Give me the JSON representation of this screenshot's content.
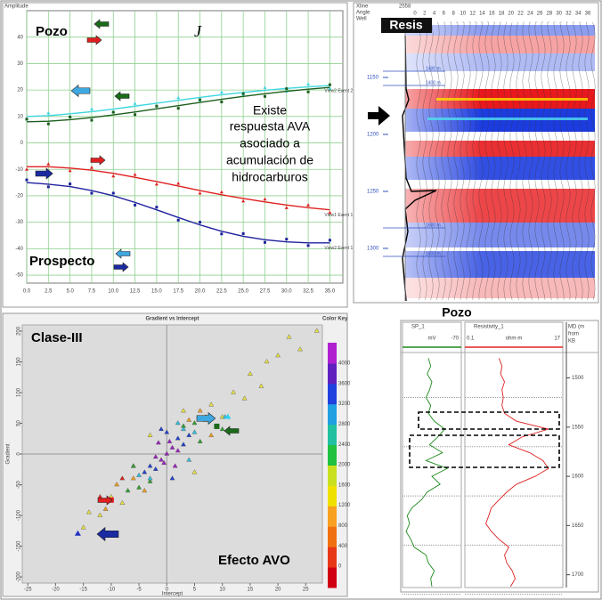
{
  "chart_data": [
    {
      "type": "line",
      "ylabel": "Amplitude",
      "x": [
        0,
        2.5,
        5,
        7.5,
        10,
        12.5,
        15,
        17.5,
        20,
        22.5,
        25,
        27.5,
        30,
        32.5,
        35
      ],
      "series": [
        {
          "name": "View2 Event 2",
          "color": "#3fd6e0",
          "values": [
            10,
            10.3,
            11,
            11.8,
            12.8,
            13.9,
            15,
            16.1,
            17.2,
            18.2,
            19.1,
            19.9,
            20.6,
            21.2,
            21.7
          ]
        },
        {
          "color": "#1d5e1d",
          "values": [
            8,
            8.2,
            8.8,
            9.6,
            10.6,
            11.7,
            12.9,
            14.1,
            15.3,
            16.5,
            17.6,
            18.6,
            19.5,
            20.3,
            21
          ]
        },
        {
          "name": "View1 Event 1",
          "color": "#e02020",
          "values": [
            -9,
            -9,
            -9.5,
            -10.3,
            -11.5,
            -13,
            -14.6,
            -16.3,
            -18,
            -19.6,
            -21,
            -22.3,
            -23.5,
            -24.5,
            -25.3
          ]
        },
        {
          "name": "View2 Event 1",
          "color": "#2020a0",
          "values": [
            -15,
            -15.6,
            -16.5,
            -18,
            -20,
            -22.5,
            -25.3,
            -28.2,
            -31,
            -33.4,
            -35.3,
            -36.6,
            -37.4,
            -37.8,
            -37.8
          ]
        }
      ],
      "xlim": [
        0,
        36.5
      ],
      "xticks": [
        {
          "value": 0,
          "label": "0.0"
        },
        2.5,
        {
          "value": 5,
          "label": "5.0"
        },
        7.5,
        {
          "value": 10,
          "label": "10.0"
        },
        12.5,
        {
          "value": 15,
          "label": "15.0"
        },
        17.5,
        {
          "value": 20,
          "label": "20.0"
        },
        22.5,
        {
          "value": 25,
          "label": "25.0"
        },
        27.5,
        {
          "value": 30,
          "label": "30.0"
        },
        32.5,
        {
          "value": 35,
          "label": "35.0"
        }
      ],
      "ylim": [
        -53,
        50
      ],
      "yticks": [
        -50,
        -40,
        -30,
        -20,
        -10,
        0,
        10,
        20,
        30,
        40
      ],
      "grid": true,
      "annotations": [
        "Pozo",
        "Prospecto",
        "J",
        "Existe",
        "respuesta AVA",
        "asociado a",
        "acumulación  de",
        "hidrocarburos"
      ]
    },
    {
      "type": "scatter",
      "title": "Gradient vs Intercept",
      "xlabel": "Intercept",
      "ylabel": "Gradient",
      "xlim": [
        -26,
        28
      ],
      "xticks": [
        -25,
        -20,
        -15,
        -10,
        -5,
        0,
        5,
        10,
        15,
        20,
        25
      ],
      "ylim": [
        -210,
        210
      ],
      "yticks": [
        -200,
        -150,
        -100,
        -50,
        0,
        50,
        100,
        150,
        200
      ],
      "series": [
        {
          "color": "#e8e040",
          "x": [
            8,
            -8,
            10,
            -10,
            12,
            -12,
            15,
            18,
            20,
            22,
            27,
            -15,
            5,
            -3,
            14,
            -14,
            3,
            -6,
            17,
            24
          ],
          "values": [
            80,
            -80,
            60,
            -70,
            100,
            -100,
            130,
            150,
            160,
            190,
            200,
            -120,
            -30,
            30,
            90,
            -95,
            70,
            -20,
            110,
            170
          ]
        },
        {
          "color": "#f0a020",
          "x": [
            -9,
            -11,
            6,
            -6,
            8,
            -4,
            4
          ],
          "values": [
            -50,
            -90,
            70,
            -40,
            30,
            -60,
            55
          ]
        },
        {
          "color": "#e02020",
          "x": [
            -12,
            -10.5,
            -8,
            7
          ],
          "values": [
            -70,
            -75,
            -40,
            55
          ]
        },
        {
          "color": "#30a030",
          "x": [
            5,
            -5,
            6,
            -6,
            7,
            -7,
            9,
            10,
            3,
            -3
          ],
          "values": [
            50,
            -55,
            20,
            -20,
            60,
            -60,
            45,
            40,
            45,
            -45
          ]
        },
        {
          "color": "#30c0e0",
          "x": [
            3,
            -3,
            5,
            -5,
            4,
            10.5,
            2
          ],
          "values": [
            40,
            -40,
            35,
            -35,
            -10,
            60,
            50
          ]
        },
        {
          "color": "#2040d0",
          "x": [
            2,
            -2,
            3,
            -3,
            1,
            -1,
            4,
            -4,
            0
          ],
          "values": [
            25,
            -25,
            15,
            -20,
            -40,
            40,
            30,
            -30,
            35
          ]
        },
        {
          "color": "#9b1fc0",
          "x": [
            0,
            1,
            -1,
            0.5,
            -0.5,
            2,
            -2,
            1.5,
            -1.5
          ],
          "values": [
            0,
            10,
            -10,
            20,
            -15,
            5,
            -5,
            -20,
            18
          ]
        }
      ],
      "colorbar": {
        "title": "Color Key",
        "ticks": [
          0,
          400,
          800,
          1200,
          1600,
          2000,
          2400,
          2800,
          3200,
          3600,
          4000
        ],
        "colors": [
          "#d00010",
          "#e83818",
          "#f07010",
          "#f8a020",
          "#f0e000",
          "#c8e020",
          "#20c040",
          "#20c0a0",
          "#20a0e0",
          "#2040e0",
          "#6020c0",
          "#b020d0"
        ]
      },
      "annotations": [
        "Clase-III",
        "Efecto AVO"
      ]
    },
    {
      "type": "log",
      "name": "SP_1",
      "unit": "mV",
      "color": "#1a8a1a",
      "xlim": [
        -120,
        -70
      ],
      "y": [
        1480,
        1488,
        1496,
        1504,
        1512,
        1520,
        1528,
        1536,
        1544,
        1552,
        1560,
        1568,
        1576,
        1584,
        1592,
        1600,
        1608,
        1616,
        1624,
        1632,
        1640,
        1648,
        1656,
        1664,
        1672,
        1680,
        1688,
        1696,
        1704,
        1712
      ],
      "values": [
        -98,
        -96,
        -99,
        -95,
        -97,
        -100,
        -96,
        -98,
        -93,
        -84,
        -90,
        -97,
        -86,
        -100,
        -82,
        -95,
        -88,
        -99,
        -104,
        -112,
        -116,
        -114,
        -117,
        -113,
        -110,
        -100,
        -98,
        -93,
        -96,
        -95
      ]
    },
    {
      "type": "log",
      "name": "Resistivity_1",
      "unit": "ohm-m",
      "color": "#e02020",
      "xlim": [
        0.1,
        17
      ],
      "log_scale": true,
      "y": [
        1480,
        1488,
        1496,
        1504,
        1512,
        1520,
        1528,
        1536,
        1544,
        1552,
        1560,
        1568,
        1576,
        1584,
        1592,
        1600,
        1608,
        1616,
        1624,
        1632,
        1640,
        1648,
        1656,
        1664,
        1672,
        1680,
        1688,
        1696,
        1704,
        1712
      ],
      "values": [
        0.6,
        0.7,
        0.65,
        0.8,
        0.7,
        0.75,
        0.7,
        0.8,
        1.5,
        8,
        2,
        1,
        3,
        6,
        8,
        4,
        1.5,
        0.9,
        0.6,
        0.4,
        0.35,
        0.3,
        0.4,
        0.6,
        1,
        0.8,
        0.9,
        1.2,
        1.4,
        1.1
      ]
    }
  ],
  "depth_track": {
    "label": [
      "MD (m",
      "from",
      "KB"
    ],
    "ylim": [
      1476,
      1713
    ],
    "yticks": [
      1500,
      1550,
      1600,
      1650,
      1700
    ]
  },
  "well_title": "Pozo",
  "seismic": {
    "header": [
      "Xline",
      "Angle",
      "Well"
    ],
    "xline": "2558",
    "log_label": "Resis",
    "angle_ticks": [
      0,
      2,
      4,
      6,
      8,
      10,
      12,
      14,
      16,
      18,
      20,
      22,
      24,
      26,
      28,
      30,
      32,
      34,
      36
    ],
    "angle_lim": [
      0,
      36
    ],
    "time_ticks": [
      1150,
      1200,
      1250,
      1300
    ],
    "time_lim": [
      1100,
      1350
    ],
    "markers": [
      "1400 m",
      "1400 m",
      "1600 m",
      "1600 m"
    ]
  }
}
